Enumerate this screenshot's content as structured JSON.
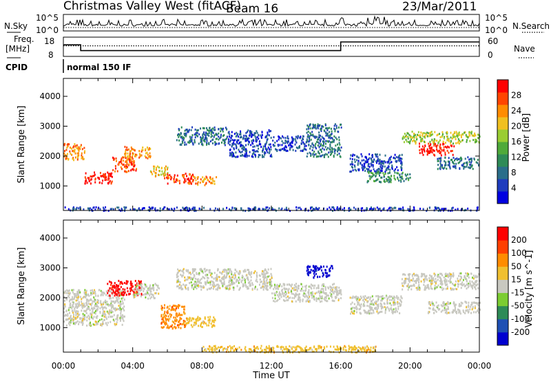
{
  "header": {
    "station": "Christmas Valley West (fitACF)",
    "beam": "Beam 16",
    "date": "23/Mar/2011"
  },
  "noise_panel": {
    "left_label": "N.Sky",
    "right_label": "N.Search",
    "left_ticks": [
      "10^5",
      "10^0"
    ],
    "right_ticks": [
      "10^5",
      "10^0"
    ]
  },
  "freq_panel": {
    "left_label_line1": "Freq.",
    "left_label_line2": "[MHz]",
    "right_label": "Nave",
    "left_ticks": [
      "18",
      "8"
    ],
    "right_ticks": [
      "60",
      "0"
    ],
    "freq_steps": [
      {
        "t": 0,
        "v": 14
      },
      {
        "t": 1.0,
        "v": 11
      },
      {
        "t": 16.0,
        "v": 15.5
      }
    ],
    "nave_level": 33
  },
  "cpid": {
    "label": "CPID",
    "value": "normal 150 IF"
  },
  "time_axis": {
    "label": "Time UT",
    "range_hours": [
      0,
      24
    ],
    "ticks": [
      "00:00",
      "04:00",
      "08:00",
      "12:00",
      "16:00",
      "20:00",
      "00:00"
    ]
  },
  "power_panel": {
    "ylabel": "Slant Range [km]",
    "yticks": [
      "1000",
      "2000",
      "3000",
      "4000"
    ],
    "yrange_km": [
      180,
      4600
    ],
    "colorbar_label": "Power [dB]",
    "colorbar_ticks": [
      "4",
      "8",
      "12",
      "16",
      "20",
      "24",
      "28"
    ],
    "colorbar_colors": [
      "#0000e0",
      "#1e3cbe",
      "#2a6e8a",
      "#2e8b57",
      "#4faa3a",
      "#9acd32",
      "#f0c020",
      "#ff8c00",
      "#ff4500",
      "#ff0000"
    ]
  },
  "velocity_panel": {
    "ylabel": "Slant Range [km]",
    "yticks": [
      "1000",
      "2000",
      "3000",
      "4000"
    ],
    "yrange_km": [
      180,
      4600
    ],
    "colorbar_label": "Velocity [m s^-1]",
    "colorbar_ticks": [
      "200",
      "100",
      "50",
      "15",
      "-15",
      "-50",
      "-100",
      "-200"
    ],
    "colorbar_colors": [
      "#0000d0",
      "#1e50b4",
      "#2e8b57",
      "#7ccd32",
      "#c8c8c0",
      "#f0c030",
      "#ff8c00",
      "#ff4000",
      "#ff0000"
    ]
  },
  "chart_data": {
    "type": "heatmap",
    "x_unit": "hours UT",
    "y_unit": "km",
    "power_regions": [
      {
        "t0": 0.0,
        "t1": 1.2,
        "r0": 1900,
        "r1": 2450,
        "level": 7
      },
      {
        "t0": 1.2,
        "t1": 2.8,
        "r0": 1100,
        "r1": 1500,
        "level": 9
      },
      {
        "t0": 2.8,
        "t1": 4.2,
        "r0": 1500,
        "r1": 2000,
        "level": 8
      },
      {
        "t0": 3.5,
        "t1": 5.0,
        "r0": 1950,
        "r1": 2350,
        "level": 7
      },
      {
        "t0": 5.0,
        "t1": 6.0,
        "r0": 1350,
        "r1": 1700,
        "level": 6
      },
      {
        "t0": 5.8,
        "t1": 7.5,
        "r0": 1100,
        "r1": 1450,
        "level": 8
      },
      {
        "t0": 7.5,
        "t1": 8.8,
        "r0": 1050,
        "r1": 1350,
        "level": 7
      },
      {
        "t0": 6.5,
        "t1": 9.5,
        "r0": 2400,
        "r1": 3000,
        "level": 2
      },
      {
        "t0": 9.5,
        "t1": 12.0,
        "r0": 2000,
        "r1": 2900,
        "level": 1
      },
      {
        "t0": 12.0,
        "t1": 14.0,
        "r0": 2200,
        "r1": 2700,
        "level": 1
      },
      {
        "t0": 14.0,
        "t1": 16.0,
        "r0": 2000,
        "r1": 3100,
        "level": 2
      },
      {
        "t0": 16.5,
        "t1": 19.5,
        "r0": 1500,
        "r1": 2100,
        "level": 1
      },
      {
        "t0": 17.5,
        "t1": 20.0,
        "r0": 1150,
        "r1": 1500,
        "level": 3
      },
      {
        "t0": 19.5,
        "t1": 24.0,
        "r0": 2450,
        "r1": 2850,
        "level": 5
      },
      {
        "t0": 20.5,
        "t1": 22.5,
        "r0": 2050,
        "r1": 2450,
        "level": 9
      },
      {
        "t0": 21.5,
        "t1": 24.0,
        "r0": 1600,
        "r1": 2000,
        "level": 2
      },
      {
        "t0": 0.0,
        "t1": 24.0,
        "r0": 200,
        "r1": 320,
        "level": 1
      }
    ],
    "velocity_regions": [
      {
        "t0": 0.0,
        "t1": 3.5,
        "r0": 1100,
        "r1": 2300,
        "cls": 4
      },
      {
        "t0": 2.5,
        "t1": 4.5,
        "r0": 2100,
        "r1": 2600,
        "cls": 8
      },
      {
        "t0": 4.0,
        "t1": 5.5,
        "r0": 2000,
        "r1": 2500,
        "cls": 4
      },
      {
        "t0": 5.6,
        "t1": 7.0,
        "r0": 1000,
        "r1": 1800,
        "cls": 6
      },
      {
        "t0": 7.0,
        "t1": 8.8,
        "r0": 1050,
        "r1": 1400,
        "cls": 5
      },
      {
        "t0": 6.5,
        "t1": 12.0,
        "r0": 2300,
        "r1": 3000,
        "cls": 4
      },
      {
        "t0": 12.0,
        "t1": 16.0,
        "r0": 1900,
        "r1": 2500,
        "cls": 4
      },
      {
        "t0": 14.0,
        "t1": 15.5,
        "r0": 2700,
        "r1": 3100,
        "cls": 0
      },
      {
        "t0": 16.5,
        "t1": 19.5,
        "r0": 1500,
        "r1": 2100,
        "cls": 4
      },
      {
        "t0": 19.5,
        "t1": 24.0,
        "r0": 2300,
        "r1": 2850,
        "cls": 4
      },
      {
        "t0": 21.0,
        "t1": 24.0,
        "r0": 1500,
        "r1": 1900,
        "cls": 4
      },
      {
        "t0": 8.0,
        "t1": 18.0,
        "r0": 200,
        "r1": 420,
        "cls": 5
      }
    ]
  }
}
